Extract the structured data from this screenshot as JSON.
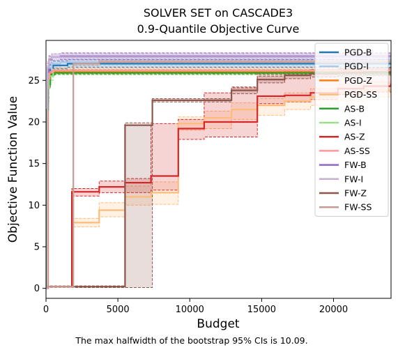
{
  "chart_data": {
    "type": "line",
    "title": "SOLVER SET on CASCADE3",
    "subtitle": "0.9-Quantile Objective Curve",
    "xlabel": "Budget",
    "ylabel": "Objective Function Value",
    "xlim": [
      0,
      24000
    ],
    "ylim": [
      -1.2,
      29.8
    ],
    "xticks": [
      0,
      5000,
      10000,
      15000,
      20000
    ],
    "yticks": [
      0,
      5,
      10,
      15,
      20,
      25
    ],
    "grid": false,
    "legend_position": "top-right",
    "footnote": "The max halfwidth of the bootstrap 95% CIs is 10.09.",
    "series": [
      {
        "name": "PGD-B",
        "color": "#1f77b4",
        "x": [
          0,
          100,
          200,
          300,
          500,
          1500,
          24000
        ],
        "y": [
          0,
          24.5,
          26.2,
          26.5,
          26.8,
          27.0,
          27.1
        ],
        "ci_low": [
          0,
          22.5,
          25.5,
          26.0,
          26.4,
          26.6,
          26.7
        ],
        "ci_high": [
          0,
          26.0,
          26.8,
          27.1,
          27.3,
          27.5,
          27.6
        ]
      },
      {
        "name": "PGD-I",
        "color": "#aec7e8",
        "x": [
          0,
          100,
          200,
          400,
          1000,
          24000
        ],
        "y": [
          0,
          25.0,
          26.5,
          27.0,
          27.2,
          27.4
        ],
        "ci_low": [
          0,
          24.0,
          26.0,
          26.6,
          26.8,
          27.0
        ],
        "ci_high": [
          0,
          26.0,
          27.0,
          27.4,
          27.6,
          27.8
        ]
      },
      {
        "name": "PGD-Z",
        "color": "#ff7f0e",
        "x": [
          0,
          150,
          300,
          600,
          24000
        ],
        "y": [
          0,
          25.0,
          25.8,
          26.0,
          26.1
        ],
        "ci_low": [
          0,
          24.0,
          25.5,
          25.8,
          25.9
        ],
        "ci_high": [
          0,
          25.8,
          26.1,
          26.3,
          26.4
        ]
      },
      {
        "name": "PGD-SS",
        "color": "#ffbb78",
        "x": [
          0,
          1800,
          3700,
          5500,
          7300,
          9200,
          11000,
          12900,
          14700,
          16600,
          18400,
          20300,
          22100
        ],
        "y": [
          0.2,
          7.9,
          9.4,
          11.0,
          11.5,
          19.8,
          20.5,
          21.5,
          22.0,
          22.5,
          23.0,
          23.5,
          23.8
        ],
        "ci_low": [
          0.1,
          7.4,
          8.6,
          10.0,
          10.1,
          19.0,
          19.2,
          20.3,
          20.8,
          21.5,
          22.0,
          22.5,
          23.0
        ],
        "ci_high": [
          0.3,
          8.4,
          10.3,
          12.3,
          12.8,
          20.6,
          21.3,
          22.3,
          22.8,
          23.5,
          24.0,
          24.5,
          24.8
        ]
      },
      {
        "name": "AS-B",
        "color": "#2ca02c",
        "x": [
          0,
          80,
          150,
          300,
          600,
          24000
        ],
        "y": [
          0,
          21.5,
          24.5,
          25.7,
          25.9,
          26.0
        ],
        "ci_low": [
          0,
          20.0,
          24.0,
          25.5,
          25.7,
          25.8
        ],
        "ci_high": [
          0,
          23.0,
          25.2,
          26.0,
          26.2,
          26.3
        ]
      },
      {
        "name": "AS-I",
        "color": "#98df8a",
        "x": [
          0,
          100,
          200,
          500,
          24000
        ],
        "y": [
          0,
          24.0,
          25.5,
          26.2,
          26.4
        ],
        "ci_low": [
          0,
          23.0,
          25.0,
          25.9,
          26.1
        ],
        "ci_high": [
          0,
          25.0,
          26.0,
          26.5,
          26.7
        ]
      },
      {
        "name": "AS-Z",
        "color": "#d62728",
        "x": [
          0,
          1800,
          3700,
          5500,
          7300,
          9200,
          11000,
          12900,
          14700,
          16600,
          18400,
          20300,
          22100,
          24000
        ],
        "y": [
          0.2,
          11.6,
          12.2,
          12.7,
          13.5,
          19.2,
          20.0,
          20.0,
          23.1,
          23.2,
          23.5,
          24.0,
          24.3,
          24.6
        ],
        "ci_low": [
          0.1,
          11.1,
          11.5,
          11.5,
          11.8,
          17.9,
          18.2,
          18.2,
          22.2,
          22.4,
          22.7,
          23.3,
          23.6,
          23.9
        ],
        "ci_high": [
          0.3,
          12.0,
          12.9,
          13.2,
          19.8,
          20.3,
          23.5,
          24.1,
          25.9,
          26.0,
          26.2,
          26.4,
          26.5,
          26.6
        ]
      },
      {
        "name": "AS-SS",
        "color": "#ff9896",
        "x": [
          0,
          120,
          250,
          500,
          24000
        ],
        "y": [
          0,
          25.2,
          26.0,
          26.2,
          26.3
        ],
        "ci_low": [
          0,
          24.2,
          25.6,
          25.9,
          26.0
        ],
        "ci_high": [
          0,
          26.0,
          26.4,
          26.5,
          26.6
        ]
      },
      {
        "name": "FW-B",
        "color": "#9467bd",
        "x": [
          0,
          100,
          200,
          400,
          1000,
          24000
        ],
        "y": [
          0,
          26.0,
          27.5,
          27.8,
          27.9,
          28.0
        ],
        "ci_low": [
          0,
          25.0,
          27.0,
          27.4,
          27.5,
          27.6
        ],
        "ci_high": [
          0,
          27.0,
          27.9,
          28.2,
          28.3,
          28.4
        ]
      },
      {
        "name": "FW-I",
        "color": "#c5b0d5",
        "x": [
          0,
          100,
          200,
          400,
          24000
        ],
        "y": [
          0,
          26.5,
          27.6,
          27.8,
          27.9
        ],
        "ci_low": [
          0,
          25.5,
          27.1,
          27.4,
          27.5
        ],
        "ci_high": [
          0,
          27.3,
          28.0,
          28.2,
          28.3
        ]
      },
      {
        "name": "FW-Z",
        "color": "#8c564b",
        "x": [
          0,
          1900,
          3700,
          5500,
          7400,
          9200,
          11100,
          12900,
          14700,
          16600,
          18400,
          20300,
          22100,
          24000
        ],
        "y": [
          0.2,
          0.2,
          0.2,
          19.6,
          22.6,
          22.6,
          22.6,
          23.8,
          25.1,
          25.6,
          25.8,
          25.9,
          26.0,
          26.0
        ],
        "ci_low": [
          0.1,
          0.1,
          0.1,
          0.1,
          22.4,
          22.4,
          22.4,
          23.4,
          24.7,
          25.2,
          25.4,
          25.5,
          25.6,
          25.6
        ],
        "ci_high": [
          0.3,
          0.3,
          0.3,
          19.9,
          22.8,
          22.8,
          22.8,
          24.2,
          25.5,
          26.1,
          26.3,
          26.4,
          26.5,
          26.5
        ]
      },
      {
        "name": "FW-SS",
        "color": "#c49c94",
        "x": [
          0,
          1900,
          3700,
          24000
        ],
        "y": [
          0.2,
          27.0,
          27.2,
          27.3
        ],
        "ci_low": [
          0.1,
          26.8,
          27.0,
          27.1
        ],
        "ci_high": [
          0.3,
          27.2,
          27.4,
          27.5
        ]
      }
    ]
  }
}
